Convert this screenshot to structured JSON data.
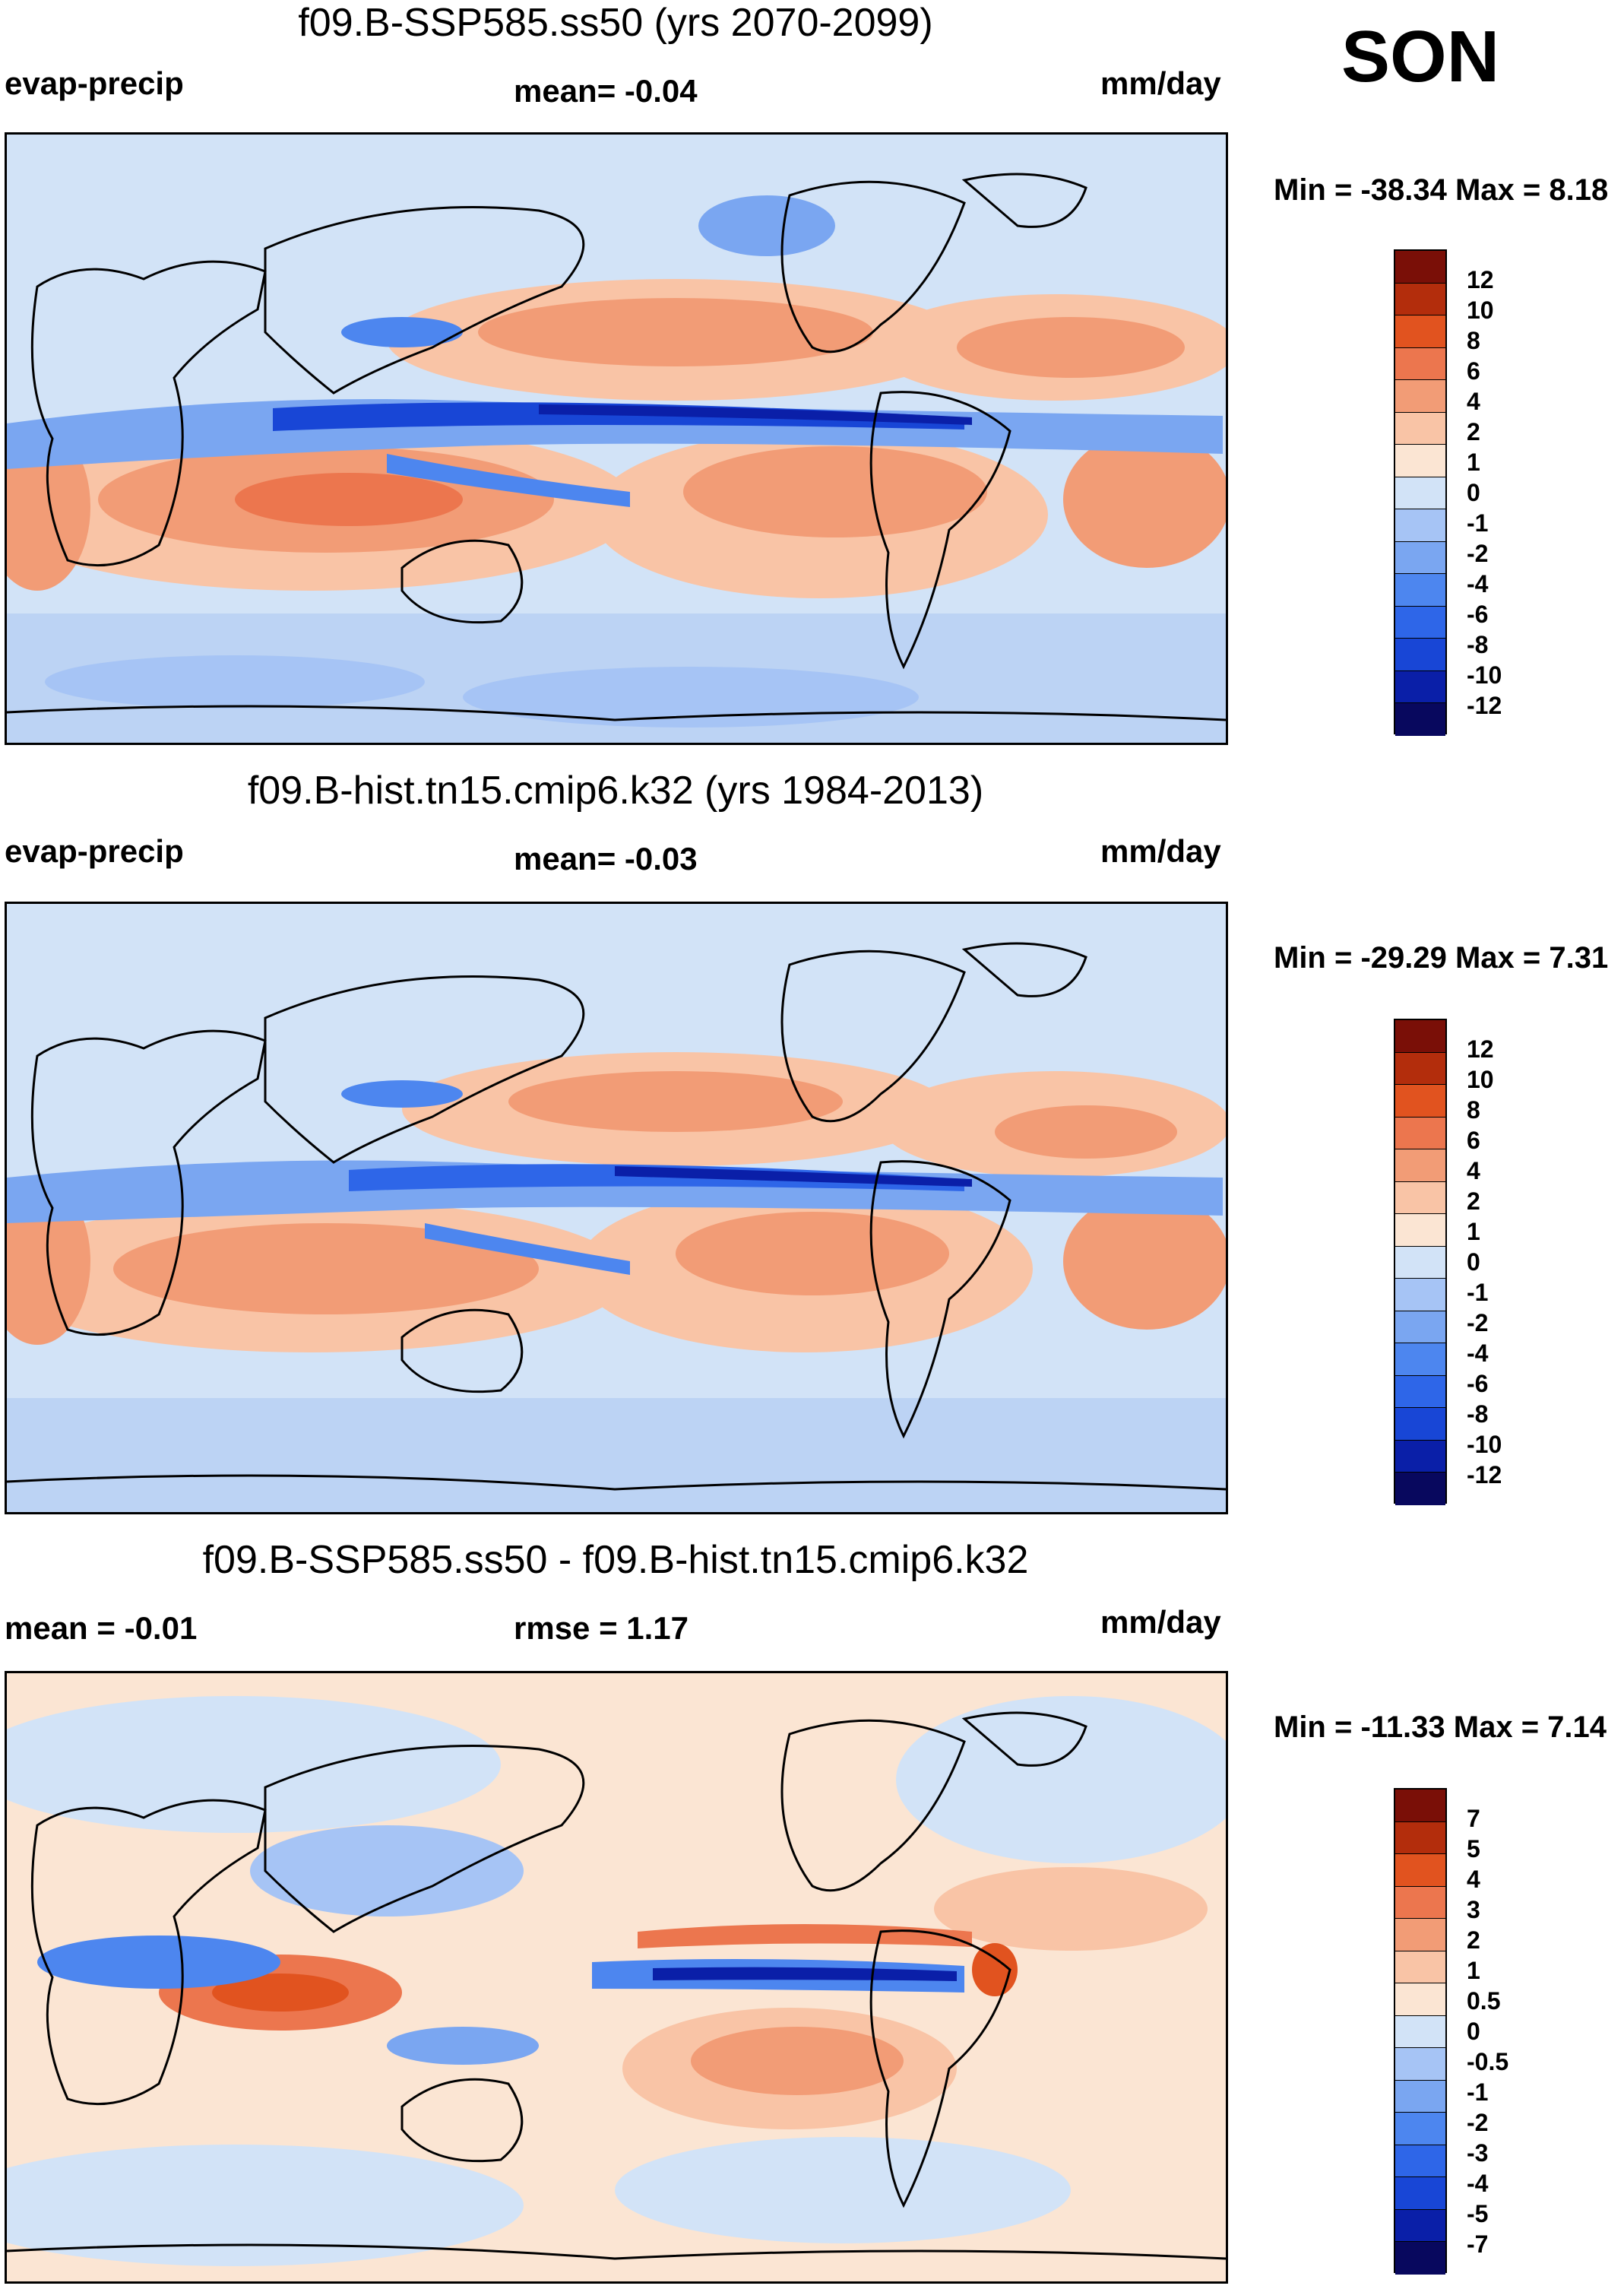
{
  "season": "SON",
  "colors": {
    "panel": [
      "#08085e",
      "#0a1fa8",
      "#1846d6",
      "#2e66e8",
      "#4d86ef",
      "#7aa6f1",
      "#a6c4f5",
      "#d2e3f7",
      "#fbe5d3",
      "#f9c4a6",
      "#f29c76",
      "#ec764e",
      "#e1531f",
      "#b32d0c",
      "#7a0f07"
    ],
    "diff": [
      "#08085e",
      "#0a1fa8",
      "#1846d6",
      "#2e66e8",
      "#4d86ef",
      "#7aa6f1",
      "#a6c4f5",
      "#d2e3f7",
      "#fbe5d3",
      "#f9c4a6",
      "#f29c76",
      "#ec764e",
      "#e1531f",
      "#b32d0c",
      "#7a0f07"
    ]
  },
  "panels": [
    {
      "title": "f09.B-SSP585.ss50 (yrs 2070-2099)",
      "left_label": "evap-precip",
      "center_label": "mean=  -0.04",
      "right_label": "mm/day",
      "minmax": "Min = -38.34 Max =   8.18",
      "levels": [
        "12",
        "10",
        "8",
        "6",
        "4",
        "2",
        "1",
        "0",
        "-1",
        "-2",
        "-4",
        "-6",
        "-8",
        "-10",
        "-12"
      ]
    },
    {
      "title": "f09.B-hist.tn15.cmip6.k32 (yrs 1984-2013)",
      "left_label": "evap-precip",
      "center_label": "mean=  -0.03",
      "right_label": "mm/day",
      "minmax": "Min = -29.29 Max =   7.31",
      "levels": [
        "12",
        "10",
        "8",
        "6",
        "4",
        "2",
        "1",
        "0",
        "-1",
        "-2",
        "-4",
        "-6",
        "-8",
        "-10",
        "-12"
      ]
    },
    {
      "title": "f09.B-SSP585.ss50 - f09.B-hist.tn15.cmip6.k32",
      "left_label": "mean =  -0.01",
      "center_label": "rmse =    1.17",
      "right_label": "mm/day",
      "minmax": "Min = -11.33 Max =   7.14",
      "levels": [
        "7",
        "5",
        "4",
        "3",
        "2",
        "1",
        "0.5",
        "0",
        "-0.5",
        "-1",
        "-2",
        "-3",
        "-4",
        "-5",
        "-7"
      ]
    }
  ]
}
